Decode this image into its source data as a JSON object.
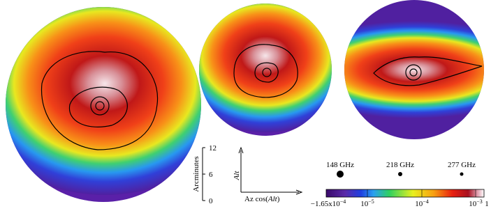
{
  "scale_bar": {
    "title": "Arcminutes",
    "ticks": [
      12,
      6,
      0
    ]
  },
  "axes": {
    "vertical": "Alt",
    "horizontal_prefix": "Az cos(",
    "horizontal_var": "Alt",
    "horizontal_suffix": ")"
  },
  "beams": [
    {
      "label": "148 GHz"
    },
    {
      "label": "218 GHz"
    },
    {
      "label": "277 GHz"
    }
  ],
  "colorbar": {
    "labels": [
      {
        "base": "−1.65x10",
        "exp": "−4"
      },
      {
        "base": "10",
        "exp": "−5"
      },
      {
        "base": "10",
        "exp": "−4"
      },
      {
        "base": "10",
        "exp": "−3"
      },
      {
        "base": "1",
        "exp": ""
      }
    ]
  }
}
